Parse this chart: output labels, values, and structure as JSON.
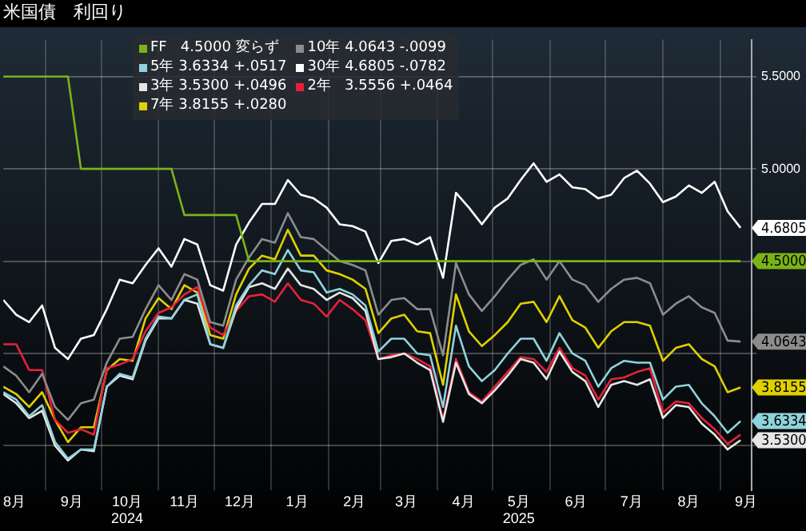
{
  "chart_data": {
    "type": "line",
    "title": "米国債　利回り",
    "x": [
      "2024-08-09",
      "2024-08-16",
      "2024-08-23",
      "2024-08-30",
      "2024-09-06",
      "2024-09-13",
      "2024-09-20",
      "2024-09-27",
      "2024-10-04",
      "2024-10-11",
      "2024-10-18",
      "2024-10-25",
      "2024-11-01",
      "2024-11-08",
      "2024-11-15",
      "2024-11-22",
      "2024-11-29",
      "2024-12-06",
      "2024-12-13",
      "2024-12-20",
      "2024-12-27",
      "2025-01-03",
      "2025-01-10",
      "2025-01-17",
      "2025-01-24",
      "2025-01-31",
      "2025-02-07",
      "2025-02-14",
      "2025-02-21",
      "2025-02-28",
      "2025-03-07",
      "2025-03-14",
      "2025-03-21",
      "2025-03-28",
      "2025-04-04",
      "2025-04-11",
      "2025-04-18",
      "2025-04-25",
      "2025-05-02",
      "2025-05-09",
      "2025-05-16",
      "2025-05-23",
      "2025-05-30",
      "2025-06-06",
      "2025-06-13",
      "2025-06-20",
      "2025-06-27",
      "2025-07-04",
      "2025-07-11",
      "2025-07-18",
      "2025-07-25",
      "2025-08-01",
      "2025-08-08",
      "2025-08-15",
      "2025-08-22",
      "2025-08-29",
      "2025-09-05",
      "2025-09-12"
    ],
    "series": [
      {
        "name": "FF   4.5000 変らず",
        "color": "#7ab317",
        "x": [
          "2024-08-09",
          "2024-09-13",
          "2024-09-20",
          "2024-11-08",
          "2024-11-15",
          "2024-12-13",
          "2024-12-20",
          "2025-09-12"
        ],
        "values": [
          5.5,
          5.5,
          5.0,
          5.0,
          4.75,
          4.75,
          4.5,
          4.5
        ],
        "value_labels": [
          null,
          null,
          null,
          null,
          null,
          null,
          null,
          "4.5000"
        ]
      },
      {
        "name": "10年 4.0643 -.0099",
        "color": "#8c8c8c",
        "values": [
          3.93,
          3.88,
          3.79,
          3.89,
          3.71,
          3.64,
          3.73,
          3.75,
          3.95,
          4.08,
          4.09,
          4.24,
          4.37,
          4.29,
          4.43,
          4.4,
          4.17,
          4.15,
          4.4,
          4.52,
          4.62,
          4.6,
          4.76,
          4.63,
          4.62,
          4.56,
          4.5,
          4.48,
          4.45,
          4.21,
          4.29,
          4.3,
          4.24,
          4.24,
          3.99,
          4.49,
          4.32,
          4.23,
          4.31,
          4.4,
          4.48,
          4.51,
          4.4,
          4.5,
          4.4,
          4.37,
          4.28,
          4.35,
          4.4,
          4.41,
          4.38,
          4.21,
          4.27,
          4.31,
          4.25,
          4.22,
          4.07,
          4.0643
        ],
        "value_labels": [
          null,
          null,
          null,
          null,
          null,
          null,
          null,
          null,
          null,
          null,
          null,
          null,
          null,
          null,
          null,
          null,
          null,
          null,
          null,
          null,
          null,
          null,
          null,
          null,
          null,
          null,
          null,
          null,
          null,
          null,
          null,
          null,
          null,
          null,
          null,
          null,
          null,
          null,
          null,
          null,
          null,
          null,
          null,
          null,
          null,
          null,
          null,
          null,
          null,
          null,
          null,
          null,
          null,
          null,
          null,
          null,
          null,
          "4.0643"
        ]
      },
      {
        "name": "5年 3.6334 +.0517",
        "color": "#8fd3dc",
        "values": [
          3.79,
          3.75,
          3.66,
          3.72,
          3.52,
          3.43,
          3.48,
          3.48,
          3.82,
          3.89,
          3.87,
          4.08,
          4.2,
          4.19,
          4.29,
          4.32,
          4.05,
          4.03,
          4.26,
          4.37,
          4.45,
          4.43,
          4.56,
          4.45,
          4.44,
          4.33,
          4.35,
          4.32,
          4.26,
          4.01,
          4.08,
          4.08,
          4.0,
          3.99,
          3.71,
          4.15,
          3.93,
          3.85,
          3.91,
          4.0,
          4.08,
          4.08,
          3.96,
          4.11,
          4.0,
          3.96,
          3.82,
          3.92,
          3.96,
          3.95,
          3.95,
          3.75,
          3.82,
          3.83,
          3.73,
          3.66,
          3.57,
          3.6334
        ],
        "value_labels": [
          null,
          null,
          null,
          null,
          null,
          null,
          null,
          null,
          null,
          null,
          null,
          null,
          null,
          null,
          null,
          null,
          null,
          null,
          null,
          null,
          null,
          null,
          null,
          null,
          null,
          null,
          null,
          null,
          null,
          null,
          null,
          null,
          null,
          null,
          null,
          null,
          null,
          null,
          null,
          null,
          null,
          null,
          null,
          null,
          null,
          null,
          null,
          null,
          null,
          null,
          null,
          null,
          null,
          null,
          null,
          null,
          null,
          "3.6334"
        ]
      },
      {
        "name": "30年 4.6805 -.0782",
        "color": "#ffffff",
        "values": [
          4.29,
          4.21,
          4.17,
          4.26,
          4.03,
          3.97,
          4.08,
          4.1,
          4.24,
          4.4,
          4.38,
          4.48,
          4.57,
          4.47,
          4.62,
          4.59,
          4.37,
          4.34,
          4.59,
          4.71,
          4.81,
          4.81,
          4.94,
          4.86,
          4.84,
          4.79,
          4.7,
          4.69,
          4.66,
          4.49,
          4.61,
          4.62,
          4.59,
          4.63,
          4.41,
          4.87,
          4.79,
          4.7,
          4.79,
          4.84,
          4.94,
          5.03,
          4.93,
          4.97,
          4.9,
          4.89,
          4.84,
          4.86,
          4.95,
          4.99,
          4.92,
          4.82,
          4.85,
          4.91,
          4.87,
          4.93,
          4.77,
          4.6805
        ],
        "value_labels": [
          null,
          null,
          null,
          null,
          null,
          null,
          null,
          null,
          null,
          null,
          null,
          null,
          null,
          null,
          null,
          null,
          null,
          null,
          null,
          null,
          null,
          null,
          null,
          null,
          null,
          null,
          null,
          null,
          null,
          null,
          null,
          null,
          null,
          null,
          null,
          null,
          null,
          null,
          null,
          null,
          null,
          null,
          null,
          null,
          null,
          null,
          null,
          null,
          null,
          null,
          null,
          null,
          null,
          null,
          null,
          null,
          null,
          "4.6805"
        ]
      },
      {
        "name": "3年 3.5300 +.0496",
        "color": "#e6e6e6",
        "values": [
          3.78,
          3.73,
          3.65,
          3.69,
          3.5,
          3.42,
          3.48,
          3.47,
          3.82,
          3.88,
          3.86,
          4.07,
          4.19,
          4.19,
          4.29,
          4.27,
          4.05,
          4.03,
          4.24,
          4.36,
          4.38,
          4.35,
          4.46,
          4.37,
          4.35,
          4.29,
          4.33,
          4.3,
          4.23,
          3.97,
          3.98,
          4.0,
          3.95,
          3.91,
          3.63,
          3.95,
          3.78,
          3.73,
          3.8,
          3.88,
          3.97,
          3.95,
          3.86,
          4.01,
          3.9,
          3.85,
          3.71,
          3.83,
          3.85,
          3.83,
          3.86,
          3.65,
          3.72,
          3.71,
          3.62,
          3.56,
          3.48,
          3.53
        ],
        "value_labels": [
          null,
          null,
          null,
          null,
          null,
          null,
          null,
          null,
          null,
          null,
          null,
          null,
          null,
          null,
          null,
          null,
          null,
          null,
          null,
          null,
          null,
          null,
          null,
          null,
          null,
          null,
          null,
          null,
          null,
          null,
          null,
          null,
          null,
          null,
          null,
          null,
          null,
          null,
          null,
          null,
          null,
          null,
          null,
          null,
          null,
          null,
          null,
          null,
          null,
          null,
          null,
          null,
          null,
          null,
          null,
          null,
          null,
          "3.5300"
        ]
      },
      {
        "name": "2年   3.5556 +.0464",
        "color": "#e8213a",
        "values": [
          4.05,
          4.05,
          3.91,
          3.91,
          3.64,
          3.57,
          3.59,
          3.56,
          3.92,
          3.94,
          3.97,
          4.12,
          4.22,
          4.25,
          4.32,
          4.36,
          4.14,
          4.1,
          4.23,
          4.31,
          4.32,
          4.28,
          4.38,
          4.29,
          4.27,
          4.2,
          4.29,
          4.24,
          4.18,
          3.97,
          3.99,
          4.0,
          3.97,
          3.93,
          3.64,
          3.97,
          3.79,
          3.74,
          3.82,
          3.9,
          3.98,
          3.97,
          3.9,
          4.03,
          3.92,
          3.88,
          3.75,
          3.86,
          3.87,
          3.9,
          3.92,
          3.68,
          3.74,
          3.73,
          3.65,
          3.59,
          3.51,
          3.56
        ]
      },
      {
        "name": "7年 3.8155 +.0280",
        "color": "#e0d000",
        "values": [
          3.82,
          3.78,
          3.71,
          3.79,
          3.64,
          3.52,
          3.6,
          3.6,
          3.91,
          3.97,
          3.96,
          4.19,
          4.3,
          4.24,
          4.37,
          4.33,
          4.1,
          4.08,
          4.32,
          4.46,
          4.53,
          4.51,
          4.67,
          4.53,
          4.53,
          4.45,
          4.43,
          4.4,
          4.35,
          4.11,
          4.19,
          4.21,
          4.12,
          4.11,
          3.83,
          4.32,
          4.12,
          4.04,
          4.1,
          4.17,
          4.27,
          4.28,
          4.17,
          4.31,
          4.18,
          4.14,
          4.03,
          4.12,
          4.17,
          4.17,
          4.15,
          3.96,
          4.03,
          4.05,
          3.97,
          3.93,
          3.79,
          3.8155
        ],
        "value_labels": [
          null,
          null,
          null,
          null,
          null,
          null,
          null,
          null,
          null,
          null,
          null,
          null,
          null,
          null,
          null,
          null,
          null,
          null,
          null,
          null,
          null,
          null,
          null,
          null,
          null,
          null,
          null,
          null,
          null,
          null,
          null,
          null,
          null,
          null,
          null,
          null,
          null,
          null,
          null,
          null,
          null,
          null,
          null,
          null,
          null,
          null,
          null,
          null,
          null,
          null,
          null,
          null,
          null,
          null,
          null,
          null,
          null,
          "3.8155"
        ]
      }
    ],
    "xlim": [
      "2024-08-09",
      "2025-09-18"
    ],
    "xticks": [
      {
        "value": "2024-08-15",
        "label": "8月"
      },
      {
        "value": "2024-09-01",
        "label": null
      },
      {
        "value": "2024-09-15",
        "label": "9月"
      },
      {
        "value": "2024-10-01",
        "label": null
      },
      {
        "value": "2024-10-15",
        "label": "10月\n2024"
      },
      {
        "value": "2024-11-01",
        "label": null
      },
      {
        "value": "2024-11-15",
        "label": "11月"
      },
      {
        "value": "2024-12-01",
        "label": null
      },
      {
        "value": "2024-12-15",
        "label": "12月"
      },
      {
        "value": "2025-01-01",
        "label": null
      },
      {
        "value": "2025-01-15",
        "label": "1月"
      },
      {
        "value": "2025-02-01",
        "label": null
      },
      {
        "value": "2025-02-15",
        "label": "2月"
      },
      {
        "value": "2025-03-01",
        "label": null
      },
      {
        "value": "2025-03-15",
        "label": "3月"
      },
      {
        "value": "2025-04-01",
        "label": null
      },
      {
        "value": "2025-04-15",
        "label": "4月"
      },
      {
        "value": "2025-05-01",
        "label": null
      },
      {
        "value": "2025-05-15",
        "label": "5月\n2025"
      },
      {
        "value": "2025-06-01",
        "label": null
      },
      {
        "value": "2025-06-15",
        "label": "6月"
      },
      {
        "value": "2025-07-01",
        "label": null
      },
      {
        "value": "2025-07-15",
        "label": "7月"
      },
      {
        "value": "2025-08-01",
        "label": null
      },
      {
        "value": "2025-08-15",
        "label": "8月"
      },
      {
        "value": "2025-09-01",
        "label": null
      },
      {
        "value": "2025-09-15",
        "label": "9月"
      }
    ],
    "ylim": [
      3.26,
      5.7
    ],
    "yticks": [
      {
        "value": 3.5,
        "label": null
      },
      {
        "value": 4.0,
        "label": null
      },
      {
        "value": 4.5,
        "label": null
      },
      {
        "value": 5.0,
        "label": "5.0000"
      },
      {
        "value": 5.5,
        "label": "5.5000"
      }
    ],
    "grid": true,
    "legend": "top",
    "line_style": "solid"
  }
}
